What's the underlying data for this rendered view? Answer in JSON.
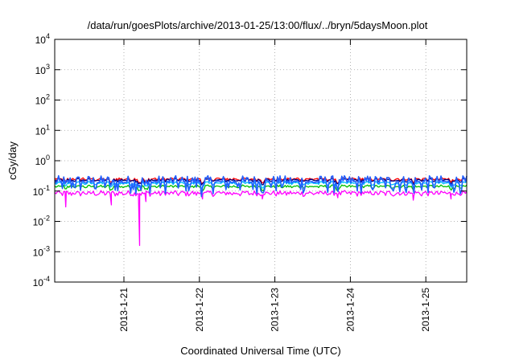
{
  "chart_data": {
    "type": "line",
    "title": "/data/run/goesPlots/archive/2013-01-25/13:00/flux/../bryn/5daysMoon.plot",
    "xlabel": "Coordinated Universal Time (UTC)",
    "ylabel": "cGy/day",
    "y_scale": "log",
    "ylim": [
      0.0001,
      10000
    ],
    "xlim": [
      "2013-01-20T02:00",
      "2013-01-25T13:00"
    ],
    "grid": true,
    "x_ticks": [
      {
        "label": "2013-1-21",
        "date": "2013-01-21T00:00"
      },
      {
        "label": "2013-1-22",
        "date": "2013-01-22T00:00"
      },
      {
        "label": "2013-1-23",
        "date": "2013-01-23T00:00"
      },
      {
        "label": "2013-1-24",
        "date": "2013-01-24T00:00"
      },
      {
        "label": "2013-1-25",
        "date": "2013-01-25T00:00"
      }
    ],
    "y_ticks": [
      {
        "base": "10",
        "exp": "-4",
        "value": 0.0001
      },
      {
        "base": "10",
        "exp": "-3",
        "value": 0.001
      },
      {
        "base": "10",
        "exp": "-2",
        "value": 0.01
      },
      {
        "base": "10",
        "exp": "-1",
        "value": 0.1
      },
      {
        "base": "10",
        "exp": "0",
        "value": 1
      },
      {
        "base": "10",
        "exp": "1",
        "value": 10
      },
      {
        "base": "10",
        "exp": "2",
        "value": 100
      },
      {
        "base": "10",
        "exp": "3",
        "value": 1000
      },
      {
        "base": "10",
        "exp": "4",
        "value": 10000
      }
    ],
    "series": [
      {
        "color": "#ff00ff",
        "base": 0.085,
        "amp": 0.02,
        "dips": [
          {
            "date": "2013-01-20T05:30",
            "value": 0.03
          },
          {
            "date": "2013-01-20T20:00",
            "value": 0.035
          },
          {
            "date": "2013-01-21T05:00",
            "value": 0.0016
          },
          {
            "date": "2013-01-21T07:00",
            "value": 0.045
          },
          {
            "date": "2013-01-22T01:00",
            "value": 0.055
          },
          {
            "date": "2013-01-22T20:00",
            "value": 0.055
          },
          {
            "date": "2013-01-23T20:00",
            "value": 0.06
          },
          {
            "date": "2013-01-24T20:00",
            "value": 0.05
          },
          {
            "date": "2013-01-25T08:00",
            "value": 0.055
          }
        ]
      },
      {
        "color": "#ff0000",
        "base": 0.25,
        "amp": 0.04,
        "dips": []
      },
      {
        "color": "#00c000",
        "base": 0.14,
        "amp": 0.02,
        "dips": []
      },
      {
        "color": "#00c0ff",
        "base": 0.18,
        "amp": 0.03,
        "dips": []
      },
      {
        "color": "#000080",
        "base": 0.23,
        "amp": 0.035,
        "dips": []
      },
      {
        "color": "#2060ff",
        "base": 0.2,
        "amp": 0.12,
        "dips": []
      }
    ]
  }
}
